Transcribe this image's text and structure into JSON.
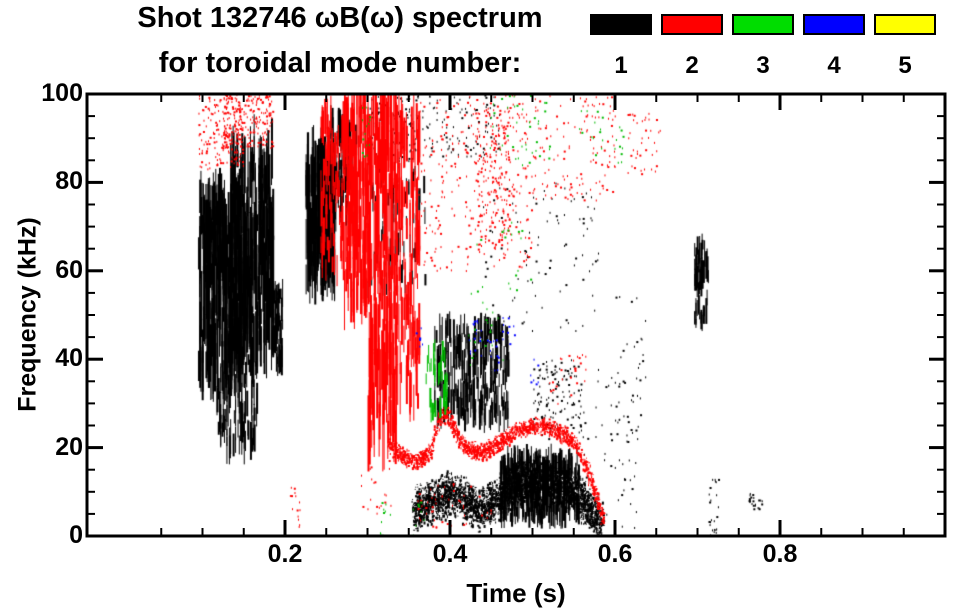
{
  "chart_data": {
    "type": "scatter",
    "title": "Shot 132746 ωB(ω) spectrum",
    "subtitle": "for toroidal mode number:",
    "xlabel": "Time (s)",
    "ylabel": "Frequency (kHz)",
    "xlim": [
      -0.04,
      1.0
    ],
    "ylim": [
      0,
      100
    ],
    "x_ticks": [
      0.2,
      0.4,
      0.6,
      0.8
    ],
    "x_tick_labels": [
      "0.2",
      "0.4",
      "0.6",
      "0.8"
    ],
    "x_minor_step": 0.05,
    "y_ticks": [
      0,
      20,
      40,
      60,
      80,
      100
    ],
    "y_tick_labels": [
      "0",
      "20",
      "40",
      "60",
      "80",
      "100"
    ],
    "y_minor_step": 5,
    "grid": false,
    "legend_position": "top-right",
    "legend_entries": [
      {
        "label": "1",
        "color": "#000000"
      },
      {
        "label": "2",
        "color": "#ff0000"
      },
      {
        "label": "3",
        "color": "#00dd00"
      },
      {
        "label": "4",
        "color": "#0000ff"
      },
      {
        "label": "5",
        "color": "#ffff00"
      }
    ],
    "series": [
      {
        "name": "n=1",
        "color": "#000000",
        "clusters": [
          {
            "kind": "streaks",
            "t": [
              0.095,
              0.15
            ],
            "f": [
              36,
              78
            ],
            "n": 300,
            "len": [
              3,
              16
            ]
          },
          {
            "kind": "streaks",
            "t": [
              0.13,
              0.185
            ],
            "f": [
              42,
              88
            ],
            "n": 350,
            "len": [
              3,
              18
            ]
          },
          {
            "kind": "streaks",
            "t": [
              0.1,
              0.145
            ],
            "f": [
              58,
              76
            ],
            "n": 120,
            "len": [
              4,
              12
            ]
          },
          {
            "kind": "streaks",
            "t": [
              0.115,
              0.165
            ],
            "f": [
              20,
              40
            ],
            "n": 110,
            "len": [
              2,
              9
            ]
          },
          {
            "kind": "streaks",
            "t": [
              0.183,
              0.196
            ],
            "f": [
              38,
              56
            ],
            "n": 60,
            "len": [
              2,
              7
            ]
          },
          {
            "kind": "streaks",
            "t": [
              0.225,
              0.26
            ],
            "f": [
              58,
              88
            ],
            "n": 300,
            "len": [
              3,
              14
            ]
          },
          {
            "kind": "streaks",
            "t": [
              0.255,
              0.285
            ],
            "f": [
              72,
              94
            ],
            "n": 120,
            "len": [
              2,
              8
            ]
          },
          {
            "kind": "specks",
            "t": [
              0.3,
              0.36
            ],
            "f": [
              85,
              100
            ],
            "n": 120
          },
          {
            "kind": "specks",
            "t": [
              0.36,
              0.46
            ],
            "f": [
              86,
              100
            ],
            "n": 100
          },
          {
            "kind": "streaks",
            "t": [
              0.3,
              0.37
            ],
            "f": [
              55,
              85
            ],
            "n": 70,
            "len": [
              2,
              6
            ]
          },
          {
            "kind": "streaks",
            "t": [
              0.38,
              0.47
            ],
            "f": [
              26,
              48
            ],
            "n": 280,
            "len": [
              2,
              7
            ]
          },
          {
            "kind": "band",
            "path": [
              [
                0.355,
                6
              ],
              [
                0.38,
                8
              ],
              [
                0.4,
                10
              ],
              [
                0.42,
                8
              ],
              [
                0.435,
                6
              ],
              [
                0.45,
                8
              ],
              [
                0.465,
                10
              ],
              [
                0.48,
                12
              ],
              [
                0.5,
                13
              ],
              [
                0.52,
                13
              ],
              [
                0.54,
                11
              ],
              [
                0.555,
                9
              ],
              [
                0.57,
                6
              ],
              [
                0.585,
                3
              ]
            ],
            "halfwidth": 5.5,
            "n": 3200,
            "dash": 3
          },
          {
            "kind": "streaks",
            "t": [
              0.46,
              0.555
            ],
            "f": [
              4,
              18
            ],
            "n": 420,
            "len": [
              2,
              6
            ]
          },
          {
            "kind": "specks",
            "t": [
              0.5,
              0.56
            ],
            "f": [
              22,
              40
            ],
            "n": 130
          },
          {
            "kind": "specks",
            "t": [
              0.56,
              0.63
            ],
            "f": [
              2,
              40
            ],
            "n": 70
          },
          {
            "kind": "specks",
            "t": [
              0.44,
              0.58
            ],
            "f": [
              45,
              80
            ],
            "n": 90
          },
          {
            "kind": "streaks",
            "t": [
              0.695,
              0.712
            ],
            "f": [
              48,
              66
            ],
            "n": 60,
            "len": [
              2,
              6
            ]
          },
          {
            "kind": "specks",
            "t": [
              0.713,
              0.725
            ],
            "f": [
              0,
              14
            ],
            "n": 25
          },
          {
            "kind": "specks",
            "t": [
              0.762,
              0.778
            ],
            "f": [
              6,
              10
            ],
            "n": 22
          },
          {
            "kind": "specks",
            "t": [
              0.6,
              0.64
            ],
            "f": [
              20,
              55
            ],
            "n": 30
          }
        ]
      },
      {
        "name": "n=2",
        "color": "#ff0000",
        "clusters": [
          {
            "kind": "specks",
            "t": [
              0.095,
              0.15
            ],
            "f": [
              83,
              100
            ],
            "n": 170
          },
          {
            "kind": "specks",
            "t": [
              0.125,
              0.185
            ],
            "f": [
              88,
              100
            ],
            "n": 200
          },
          {
            "kind": "specks",
            "t": [
              0.205,
              0.218
            ],
            "f": [
              2,
              12
            ],
            "n": 14
          },
          {
            "kind": "streaks",
            "t": [
              0.243,
              0.272
            ],
            "f": [
              60,
              96
            ],
            "n": 90,
            "len": [
              3,
              9
            ]
          },
          {
            "kind": "streaks",
            "t": [
              0.27,
              0.302
            ],
            "f": [
              52,
              100
            ],
            "n": 200,
            "len": [
              4,
              14
            ]
          },
          {
            "kind": "streaks",
            "t": [
              0.3,
              0.335
            ],
            "f": [
              22,
              100
            ],
            "n": 240,
            "len": [
              4,
              18
            ]
          },
          {
            "kind": "streaks",
            "t": [
              0.332,
              0.362
            ],
            "f": [
              30,
              95
            ],
            "n": 150,
            "len": [
              3,
              12
            ]
          },
          {
            "kind": "specks",
            "t": [
              0.36,
              0.5
            ],
            "f": [
              60,
              100
            ],
            "n": 280
          },
          {
            "kind": "specks",
            "t": [
              0.43,
              0.472
            ],
            "f": [
              65,
              97
            ],
            "n": 180
          },
          {
            "kind": "specks",
            "t": [
              0.5,
              0.6
            ],
            "f": [
              76,
              100
            ],
            "n": 130
          },
          {
            "kind": "specks",
            "t": [
              0.615,
              0.655
            ],
            "f": [
              82,
              96
            ],
            "n": 40
          },
          {
            "kind": "band",
            "path": [
              [
                0.325,
                21
              ],
              [
                0.345,
                18
              ],
              [
                0.36,
                17
              ],
              [
                0.375,
                19
              ],
              [
                0.385,
                26
              ],
              [
                0.395,
                28
              ],
              [
                0.405,
                24
              ],
              [
                0.42,
                20
              ],
              [
                0.435,
                19
              ],
              [
                0.45,
                20
              ],
              [
                0.465,
                22
              ],
              [
                0.48,
                24
              ],
              [
                0.5,
                25
              ],
              [
                0.52,
                25
              ],
              [
                0.54,
                23
              ],
              [
                0.555,
                20
              ],
              [
                0.565,
                16
              ],
              [
                0.575,
                10
              ],
              [
                0.585,
                4
              ]
            ],
            "halfwidth": 2.2,
            "n": 1500,
            "dash": 3
          },
          {
            "kind": "specks",
            "t": [
              0.36,
              0.45
            ],
            "f": [
              2,
              12
            ],
            "n": 50
          },
          {
            "kind": "specks",
            "t": [
              0.52,
              0.565
            ],
            "f": [
              30,
              42
            ],
            "n": 25
          },
          {
            "kind": "specks",
            "t": [
              0.29,
              0.33
            ],
            "f": [
              5,
              18
            ],
            "n": 20
          }
        ]
      },
      {
        "name": "n=3",
        "color": "#00bb00",
        "clusters": [
          {
            "kind": "specks",
            "t": [
              0.293,
              0.307
            ],
            "f": [
              86,
              98
            ],
            "n": 16
          },
          {
            "kind": "specks",
            "t": [
              0.315,
              0.33
            ],
            "f": [
              0,
              10
            ],
            "n": 10
          },
          {
            "kind": "streaks",
            "t": [
              0.37,
              0.397
            ],
            "f": [
              28,
              42
            ],
            "n": 40,
            "len": [
              2,
              5
            ]
          },
          {
            "kind": "specks",
            "t": [
              0.42,
              0.465
            ],
            "f": [
              38,
              56
            ],
            "n": 24
          },
          {
            "kind": "specks",
            "t": [
              0.448,
              0.52
            ],
            "f": [
              84,
              100
            ],
            "n": 40
          },
          {
            "kind": "specks",
            "t": [
              0.555,
              0.585
            ],
            "f": [
              86,
              97
            ],
            "n": 14
          },
          {
            "kind": "specks",
            "t": [
              0.598,
              0.612
            ],
            "f": [
              84,
              93
            ],
            "n": 10
          },
          {
            "kind": "specks",
            "t": [
              0.43,
              0.5
            ],
            "f": [
              55,
              72
            ],
            "n": 18
          },
          {
            "kind": "specks",
            "t": [
              0.35,
              0.37
            ],
            "f": [
              0,
              8
            ],
            "n": 8
          }
        ]
      },
      {
        "name": "n=4",
        "color": "#0000ff",
        "clusters": [
          {
            "kind": "specks",
            "t": [
              0.422,
              0.438
            ],
            "f": [
              41,
              49
            ],
            "n": 18
          },
          {
            "kind": "specks",
            "t": [
              0.443,
              0.458
            ],
            "f": [
              37,
              45
            ],
            "n": 12
          },
          {
            "kind": "specks",
            "t": [
              0.463,
              0.478
            ],
            "f": [
              43,
              51
            ],
            "n": 10
          },
          {
            "kind": "specks",
            "t": [
              0.357,
              0.367
            ],
            "f": [
              43,
              48
            ],
            "n": 6
          },
          {
            "kind": "specks",
            "t": [
              0.497,
              0.512
            ],
            "f": [
              34,
              41
            ],
            "n": 7
          }
        ]
      },
      {
        "name": "n=5",
        "color": "#ffff00",
        "clusters": []
      }
    ]
  }
}
